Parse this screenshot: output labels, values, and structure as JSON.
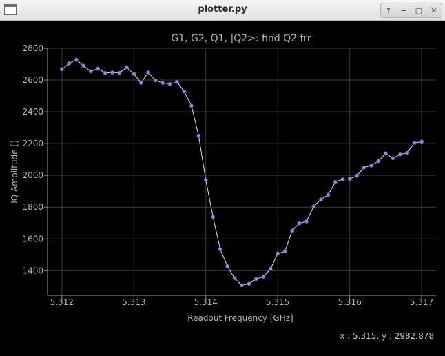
{
  "window": {
    "title": "plotter.py",
    "controls": {
      "keep_above": "↑",
      "minimize": "−",
      "maximize": "▢",
      "close": "✕"
    }
  },
  "colors": {
    "background": "#000000",
    "grid": "#3a3a3a",
    "axis": "#9a9a9a",
    "text": "#b4b4b4",
    "line": "#e6e6e6",
    "marker_fill": "#8f8fd8",
    "marker_stroke": "#5656a8"
  },
  "readout": "x : 5.315, y : 2982.878",
  "chart_data": {
    "type": "line",
    "title": "G1, G2, Q1, |Q2>: find Q2 frr",
    "xlabel": "Readout Frequency [GHz]",
    "ylabel": "IQ Amplitude []",
    "xlim": [
      5.3118,
      5.3172
    ],
    "ylim": [
      1245,
      2800
    ],
    "xticks": [
      5.312,
      5.313,
      5.314,
      5.315,
      5.316,
      5.317
    ],
    "xtick_labels": [
      "5.312",
      "5.313",
      "5.314",
      "5.315",
      "5.316",
      "5.317"
    ],
    "yticks": [
      1400,
      1600,
      1800,
      2000,
      2200,
      2400,
      2600,
      2800
    ],
    "ytick_labels": [
      "1400",
      "1600",
      "1800",
      "2000",
      "2200",
      "2400",
      "2600",
      "2800"
    ],
    "grid": true,
    "series": [
      {
        "x": [
          5.312,
          5.3121,
          5.3122,
          5.3123,
          5.3124,
          5.3125,
          5.3126,
          5.3127,
          5.3128,
          5.3129,
          5.313,
          5.3131,
          5.3132,
          5.3133,
          5.3134,
          5.3135,
          5.3136,
          5.3137,
          5.3138,
          5.3139,
          5.314,
          5.3141,
          5.3142,
          5.3143,
          5.3144,
          5.3145,
          5.3146,
          5.3147,
          5.3148,
          5.3149,
          5.315,
          5.3151,
          5.3152,
          5.3153,
          5.3154,
          5.3155,
          5.3156,
          5.3157,
          5.3158,
          5.3159,
          5.316,
          5.3161,
          5.3162,
          5.3163,
          5.3164,
          5.3165,
          5.3166,
          5.3167,
          5.3168,
          5.3169,
          5.317
        ],
        "y": [
          2668,
          2705,
          2728,
          2690,
          2655,
          2672,
          2645,
          2648,
          2645,
          2680,
          2638,
          2583,
          2648,
          2598,
          2582,
          2575,
          2588,
          2528,
          2438,
          2250,
          1970,
          1738,
          1535,
          1428,
          1352,
          1308,
          1318,
          1348,
          1362,
          1412,
          1508,
          1522,
          1652,
          1698,
          1710,
          1805,
          1848,
          1878,
          1958,
          1975,
          1978,
          1998,
          2050,
          2062,
          2090,
          2138,
          2108,
          2132,
          2142,
          2205,
          2212
        ]
      }
    ]
  }
}
